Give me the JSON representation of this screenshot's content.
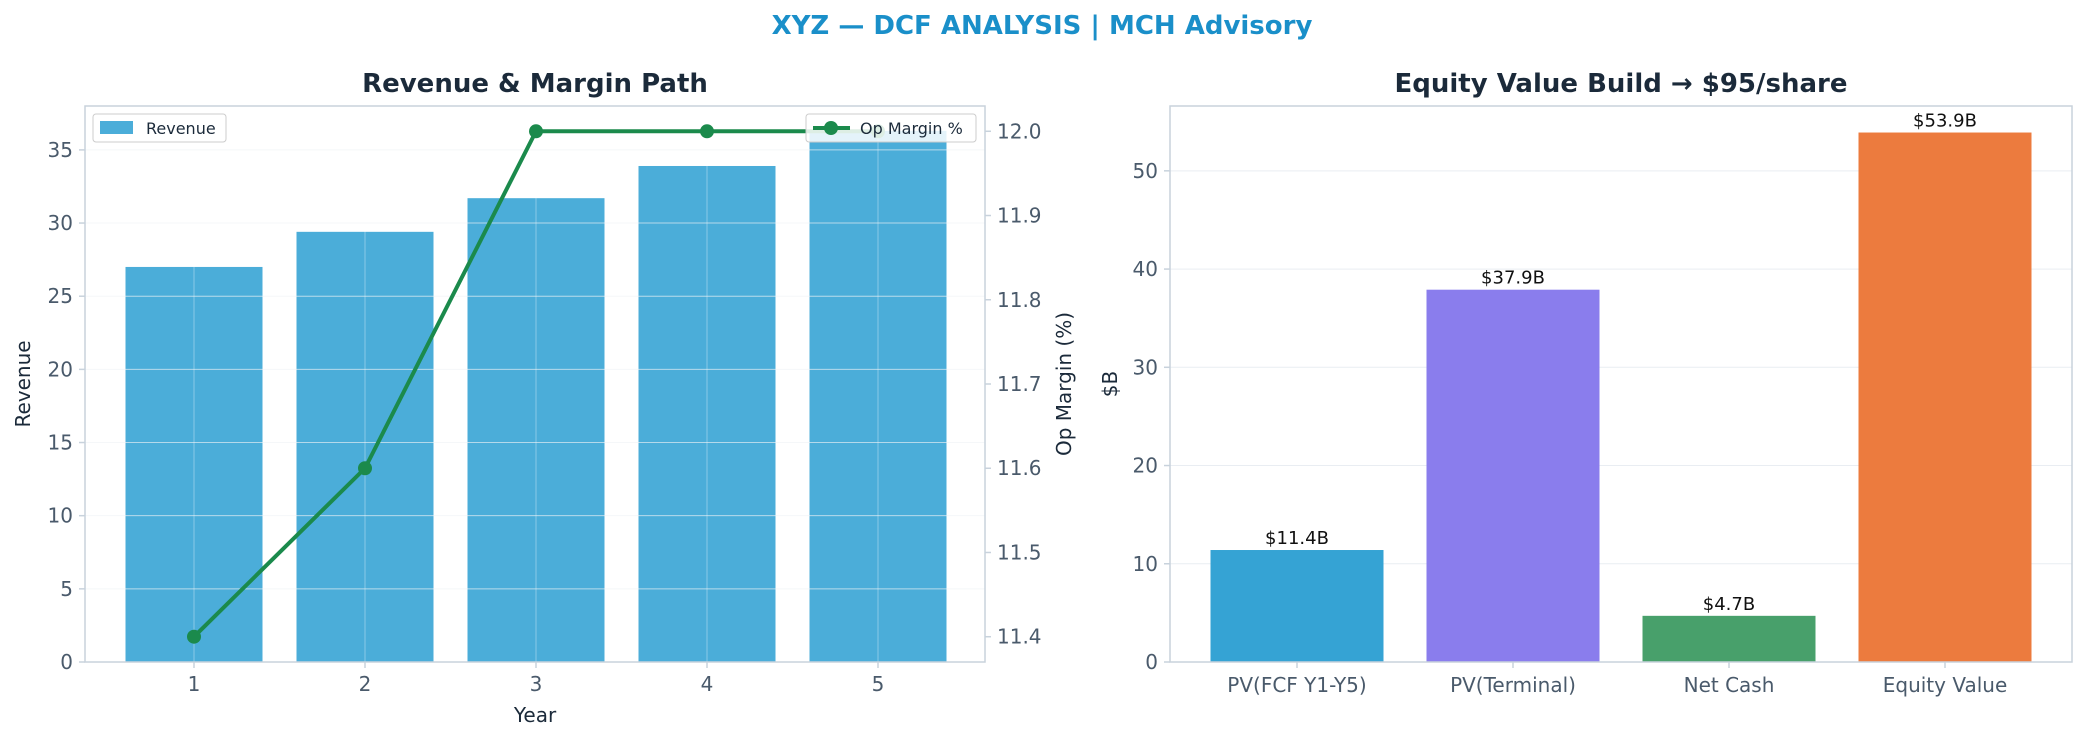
{
  "suptitle": "XYZ — DCF ANALYSIS | MCH Advisory",
  "colors": {
    "suptitle": "#1a8fc9",
    "title": "#1b2a3a",
    "axis_text": "#4a5a6b",
    "label_text": "#1b2a3a",
    "spine": "#c8d2dc",
    "grid": "#e9edf2",
    "revenue_bar": "#4badd9",
    "margin_line": "#1b8a4c"
  },
  "chart_data": [
    {
      "type": "bar+line",
      "title": "Revenue & Margin Path",
      "xlabel": "Year",
      "ylabel": "Revenue",
      "y2label": "Op Margin (%)",
      "categories": [
        1,
        2,
        3,
        4,
        5
      ],
      "ylim": [
        0,
        38
      ],
      "y2lim": [
        11.37,
        12.03
      ],
      "yticks": [
        0,
        5,
        10,
        15,
        20,
        25,
        30,
        35
      ],
      "y2ticks": [
        11.4,
        11.5,
        11.6,
        11.7,
        11.8,
        11.9,
        12.0
      ],
      "grid": true,
      "series": [
        {
          "name": "Revenue",
          "kind": "bar",
          "axis": "left",
          "values": [
            27.0,
            29.4,
            31.7,
            33.9,
            36.3
          ]
        },
        {
          "name": "Op Margin %",
          "kind": "line",
          "axis": "right",
          "values": [
            11.4,
            11.6,
            12.0,
            12.0,
            12.0
          ]
        }
      ],
      "legend_left": "upper-left",
      "legend_right": "upper-right"
    },
    {
      "type": "bar",
      "title": "Equity Value Build → $95/share",
      "xlabel": "",
      "ylabel": "$B",
      "categories": [
        "PV(FCF Y1-Y5)",
        "PV(Terminal)",
        "Net Cash",
        "Equity Value"
      ],
      "values": [
        11.4,
        37.9,
        4.7,
        53.9
      ],
      "data_labels": [
        "$11.4B",
        "$37.9B",
        "$4.7B",
        "$53.9B"
      ],
      "bar_colors": [
        "#35a3d4",
        "#8a7ded",
        "#48a06b",
        "#ec7b3e"
      ],
      "ylim": [
        0,
        56.6
      ],
      "yticks": [
        0,
        10,
        20,
        30,
        40,
        50
      ],
      "grid": true
    }
  ]
}
